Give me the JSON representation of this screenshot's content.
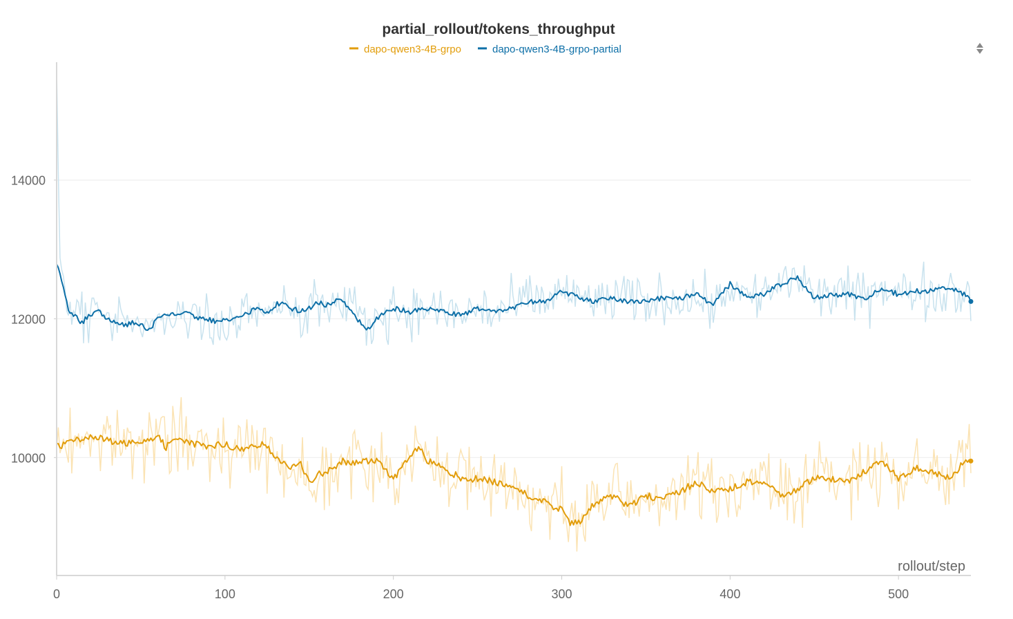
{
  "chart_data": {
    "type": "line",
    "title": "partial_rollout/tokens_throughput",
    "xlabel": "rollout/step",
    "ylabel": "",
    "xlim": [
      0,
      543
    ],
    "ylim": [
      8300,
      15700
    ],
    "x_ticks": [
      0,
      100,
      200,
      300,
      400,
      500
    ],
    "x_tick_labels": [
      "0",
      "100",
      "200",
      "300",
      "400",
      "500"
    ],
    "y_ticks": [
      10000,
      12000,
      14000
    ],
    "y_tick_labels": [
      "10000",
      "12000",
      "14000"
    ],
    "grid": true,
    "legend_position": "top-center",
    "series": [
      {
        "name": "dapo-qwen3-4B-grpo",
        "color": "#e29d0b",
        "raw_color": "#fbe3b3",
        "x": [
          0,
          10,
          20,
          30,
          40,
          50,
          60,
          65,
          70,
          80,
          90,
          100,
          110,
          120,
          125,
          130,
          140,
          145,
          150,
          155,
          160,
          170,
          175,
          180,
          190,
          200,
          210,
          215,
          220,
          230,
          240,
          245,
          250,
          260,
          270,
          280,
          290,
          300,
          305,
          310,
          320,
          330,
          340,
          350,
          360,
          370,
          380,
          390,
          400,
          410,
          420,
          430,
          440,
          450,
          460,
          470,
          480,
          490,
          500,
          510,
          520,
          530,
          540,
          543
        ],
        "values": [
          10150,
          10250,
          10300,
          10250,
          10200,
          10250,
          10300,
          10150,
          10300,
          10200,
          10150,
          10200,
          10100,
          10200,
          10150,
          10000,
          9850,
          9900,
          9650,
          9750,
          9800,
          9950,
          9900,
          9950,
          9950,
          9700,
          10000,
          10150,
          9950,
          9850,
          9700,
          9650,
          9700,
          9650,
          9600,
          9450,
          9350,
          9250,
          9050,
          9050,
          9350,
          9450,
          9300,
          9450,
          9400,
          9500,
          9650,
          9500,
          9550,
          9650,
          9650,
          9450,
          9550,
          9700,
          9700,
          9650,
          9800,
          9950,
          9700,
          9850,
          9800,
          9700,
          9950,
          9950
        ],
        "noise_amplitude": 400
      },
      {
        "name": "dapo-qwen3-4B-grpo-partial",
        "color": "#0d6fa7",
        "raw_color": "#c8e2ee",
        "x": [
          0,
          2,
          5,
          7,
          10,
          15,
          20,
          25,
          30,
          35,
          40,
          45,
          50,
          55,
          60,
          65,
          70,
          75,
          80,
          85,
          90,
          95,
          100,
          105,
          110,
          115,
          120,
          125,
          130,
          135,
          140,
          145,
          150,
          155,
          160,
          165,
          170,
          175,
          180,
          185,
          190,
          195,
          200,
          210,
          220,
          230,
          240,
          250,
          260,
          270,
          280,
          290,
          300,
          310,
          320,
          330,
          340,
          350,
          360,
          370,
          380,
          390,
          400,
          410,
          420,
          430,
          440,
          450,
          460,
          470,
          480,
          490,
          500,
          510,
          520,
          530,
          540,
          543
        ],
        "values": [
          12800,
          12650,
          12350,
          12150,
          12050,
          11950,
          12050,
          12100,
          12000,
          11950,
          11900,
          11950,
          11900,
          11850,
          12000,
          12050,
          12050,
          12100,
          12050,
          12000,
          12000,
          11950,
          12000,
          12000,
          12050,
          12100,
          12150,
          12100,
          12200,
          12250,
          12150,
          12100,
          12150,
          12250,
          12200,
          12250,
          12250,
          12150,
          11950,
          11850,
          12000,
          12100,
          12150,
          12100,
          12150,
          12100,
          12050,
          12150,
          12100,
          12150,
          12250,
          12250,
          12400,
          12300,
          12250,
          12300,
          12250,
          12250,
          12300,
          12300,
          12350,
          12200,
          12500,
          12300,
          12350,
          12500,
          12600,
          12300,
          12350,
          12350,
          12300,
          12450,
          12350,
          12400,
          12400,
          12450,
          12350,
          12250
        ],
        "noise_amplitude": 300
      }
    ]
  },
  "ui": {
    "sort_icon": "up-down-arrows-icon"
  }
}
